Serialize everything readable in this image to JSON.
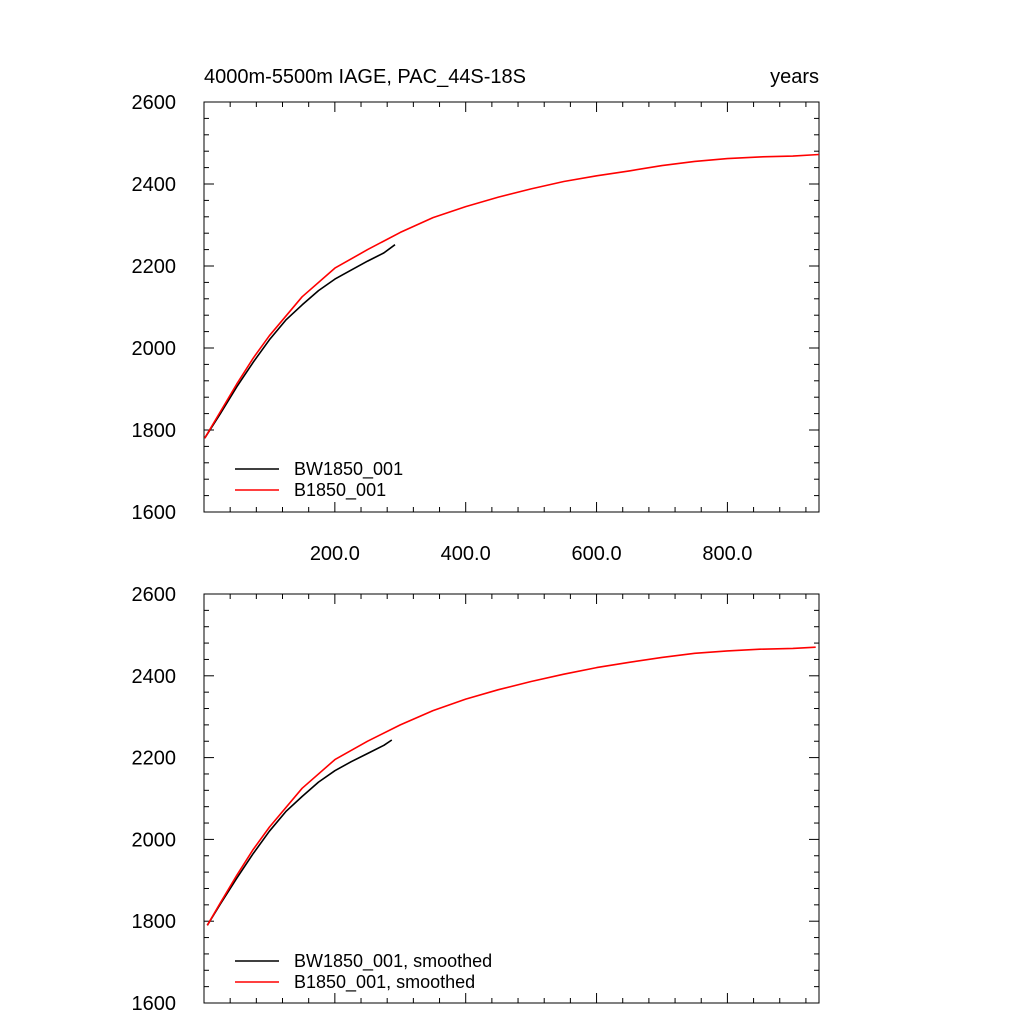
{
  "chart_data": [
    {
      "type": "line",
      "title": "4000m-5500m IAGE, PAC_44S-18S",
      "units": "years",
      "xlim": [
        0,
        940
      ],
      "ylim": [
        1600,
        2600
      ],
      "x_ticks_labeled": [
        "200.0",
        "400.0",
        "600.0",
        "800.0"
      ],
      "y_ticks": [
        "1600",
        "1800",
        "2000",
        "2200",
        "2400",
        "2600"
      ],
      "grid": false,
      "legend_position": "bottom-left",
      "series": [
        {
          "name": "BW1850_001",
          "color": "#000000",
          "x": [
            1,
            25,
            50,
            75,
            100,
            125,
            150,
            175,
            200,
            225,
            250,
            275,
            292
          ],
          "y": [
            1780,
            1840,
            1905,
            1965,
            2020,
            2068,
            2105,
            2140,
            2168,
            2190,
            2212,
            2232,
            2252
          ]
        },
        {
          "name": "B1850_001",
          "color": "#ff0000",
          "x": [
            1,
            25,
            50,
            75,
            100,
            150,
            200,
            250,
            300,
            350,
            400,
            450,
            500,
            550,
            600,
            650,
            700,
            750,
            800,
            850,
            900,
            940
          ],
          "y": [
            1780,
            1845,
            1912,
            1975,
            2030,
            2125,
            2195,
            2240,
            2282,
            2318,
            2345,
            2368,
            2388,
            2406,
            2420,
            2432,
            2445,
            2455,
            2462,
            2466,
            2468,
            2472
          ]
        }
      ]
    },
    {
      "type": "line",
      "xlim": [
        0,
        940
      ],
      "ylim": [
        1600,
        2600
      ],
      "y_ticks": [
        "1600",
        "1800",
        "2000",
        "2200",
        "2400",
        "2600"
      ],
      "grid": false,
      "legend_position": "bottom-left",
      "series": [
        {
          "name": "BW1850_001, smoothed",
          "color": "#000000",
          "x": [
            5,
            25,
            50,
            75,
            100,
            125,
            150,
            175,
            200,
            225,
            250,
            275,
            287
          ],
          "y": [
            1790,
            1842,
            1905,
            1965,
            2020,
            2068,
            2105,
            2140,
            2168,
            2190,
            2210,
            2230,
            2243
          ]
        },
        {
          "name": "B1850_001, smoothed",
          "color": "#ff0000",
          "x": [
            5,
            25,
            50,
            75,
            100,
            150,
            200,
            250,
            300,
            350,
            400,
            450,
            500,
            550,
            600,
            650,
            700,
            750,
            800,
            850,
            900,
            935
          ],
          "y": [
            1790,
            1845,
            1912,
            1975,
            2030,
            2125,
            2195,
            2240,
            2280,
            2315,
            2343,
            2366,
            2386,
            2404,
            2420,
            2433,
            2445,
            2455,
            2461,
            2465,
            2467,
            2470
          ]
        }
      ]
    }
  ]
}
